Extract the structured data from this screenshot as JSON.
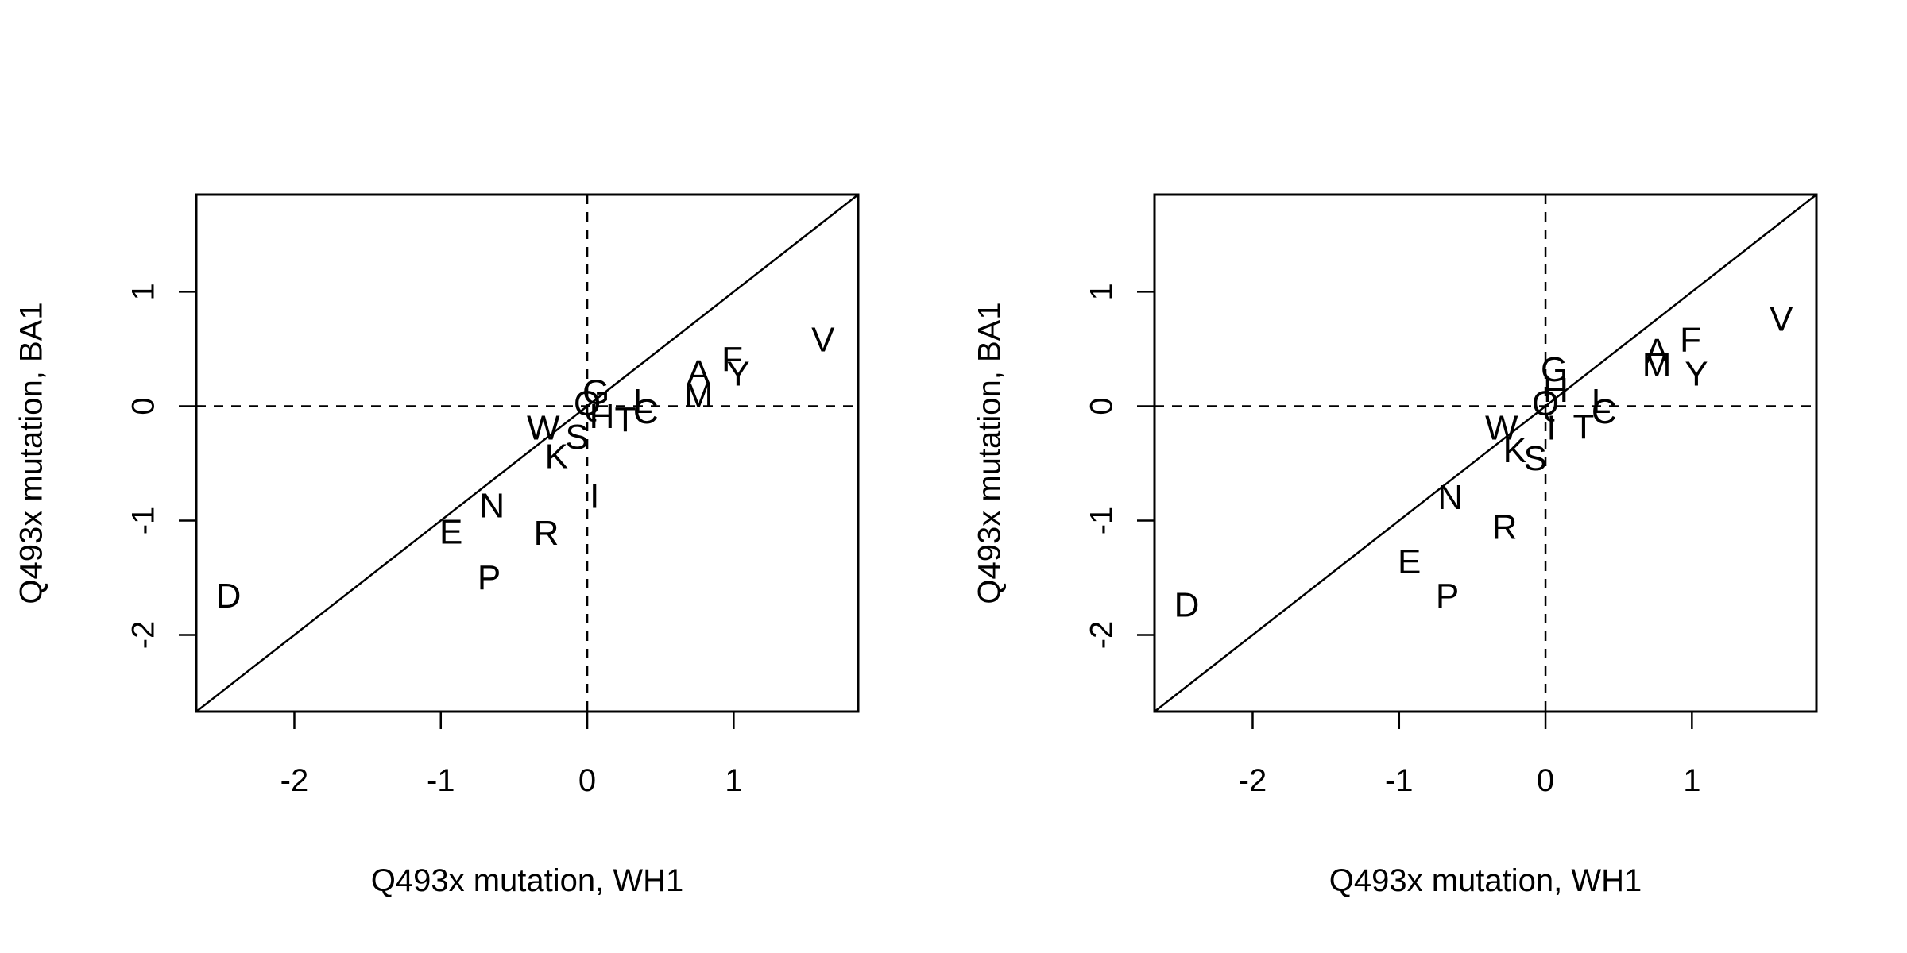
{
  "chart_data": [
    {
      "type": "scatter",
      "xlabel": "Q493x mutation, WH1",
      "ylabel": "Q493x mutation, BA1",
      "xlim": [
        -2.67,
        1.85
      ],
      "ylim": [
        -2.67,
        1.85
      ],
      "xticks": [
        "-2",
        "-1",
        "0",
        "1"
      ],
      "xtick_values": [
        -2,
        -1,
        0,
        1
      ],
      "yticks": [
        "-2",
        "-1",
        "0",
        "1"
      ],
      "ytick_values": [
        -2,
        -1,
        0,
        1
      ],
      "reference_lines": [
        "y = x (solid)",
        "x = 0 (dashed)",
        "y = 0 (dashed)"
      ],
      "points": [
        {
          "label": "D",
          "x": -2.45,
          "y": -1.68
        },
        {
          "label": "E",
          "x": -0.93,
          "y": -1.12
        },
        {
          "label": "N",
          "x": -0.65,
          "y": -0.89
        },
        {
          "label": "P",
          "x": -0.67,
          "y": -1.52
        },
        {
          "label": "R",
          "x": -0.28,
          "y": -1.13
        },
        {
          "label": "W",
          "x": -0.3,
          "y": -0.21
        },
        {
          "label": "K",
          "x": -0.21,
          "y": -0.46
        },
        {
          "label": "S",
          "x": -0.07,
          "y": -0.29
        },
        {
          "label": "Q",
          "x": 0.0,
          "y": 0.0
        },
        {
          "label": "G",
          "x": 0.06,
          "y": 0.1
        },
        {
          "label": "H",
          "x": 0.1,
          "y": -0.11
        },
        {
          "label": "T",
          "x": 0.26,
          "y": -0.14
        },
        {
          "label": "L",
          "x": 0.38,
          "y": 0.02
        },
        {
          "label": "C",
          "x": 0.4,
          "y": -0.07
        },
        {
          "label": "I",
          "x": 0.05,
          "y": -0.81
        },
        {
          "label": "A",
          "x": 0.76,
          "y": 0.27
        },
        {
          "label": "M",
          "x": 0.76,
          "y": 0.07
        },
        {
          "label": "F",
          "x": 0.99,
          "y": 0.39
        },
        {
          "label": "Y",
          "x": 1.03,
          "y": 0.26
        },
        {
          "label": "V",
          "x": 1.61,
          "y": 0.56
        }
      ]
    },
    {
      "type": "scatter",
      "xlabel": "Q493x mutation, WH1",
      "ylabel": "Q493x mutation, BA1",
      "xlim": [
        -2.67,
        1.85
      ],
      "ylim": [
        -2.67,
        1.85
      ],
      "xticks": [
        "-2",
        "-1",
        "0",
        "1"
      ],
      "xtick_values": [
        -2,
        -1,
        0,
        1
      ],
      "yticks": [
        "-2",
        "-1",
        "0",
        "1"
      ],
      "ytick_values": [
        -2,
        -1,
        0,
        1
      ],
      "reference_lines": [
        "y = x (solid)",
        "x = 0 (dashed)",
        "y = 0 (dashed)"
      ],
      "points": [
        {
          "label": "D",
          "x": -2.45,
          "y": -1.76
        },
        {
          "label": "E",
          "x": -0.93,
          "y": -1.38
        },
        {
          "label": "N",
          "x": -0.65,
          "y": -0.82
        },
        {
          "label": "P",
          "x": -0.67,
          "y": -1.68
        },
        {
          "label": "R",
          "x": -0.28,
          "y": -1.08
        },
        {
          "label": "W",
          "x": -0.3,
          "y": -0.21
        },
        {
          "label": "K",
          "x": -0.21,
          "y": -0.41
        },
        {
          "label": "S",
          "x": -0.07,
          "y": -0.48
        },
        {
          "label": "Q",
          "x": 0.0,
          "y": 0.0
        },
        {
          "label": "G",
          "x": 0.06,
          "y": 0.3
        },
        {
          "label": "H",
          "x": 0.07,
          "y": 0.12
        },
        {
          "label": "T",
          "x": 0.26,
          "y": -0.2
        },
        {
          "label": "I",
          "x": 0.04,
          "y": -0.21
        },
        {
          "label": "L",
          "x": 0.38,
          "y": 0.02
        },
        {
          "label": "C",
          "x": 0.4,
          "y": -0.07
        },
        {
          "label": "A",
          "x": 0.76,
          "y": 0.46
        },
        {
          "label": "M",
          "x": 0.76,
          "y": 0.34
        },
        {
          "label": "F",
          "x": 0.99,
          "y": 0.56
        },
        {
          "label": "Y",
          "x": 1.03,
          "y": 0.26
        },
        {
          "label": "V",
          "x": 1.61,
          "y": 0.74
        }
      ]
    }
  ]
}
